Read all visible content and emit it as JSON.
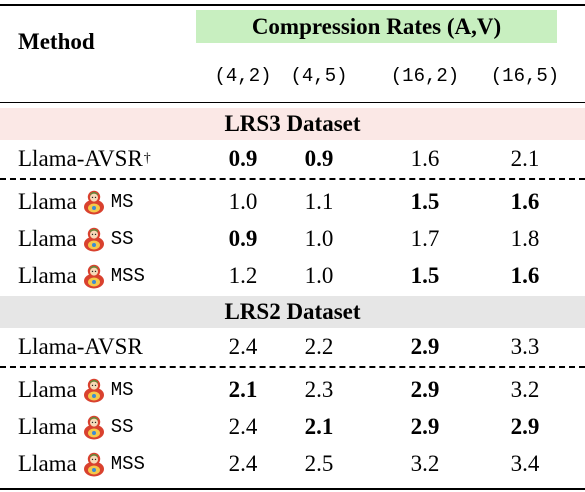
{
  "header": {
    "method": "Method",
    "group_title": "Compression Rates (A,V)",
    "group_bg": "#c8efc0",
    "rates": [
      "(4,2)",
      "(4,5)",
      "(16,2)",
      "(16,5)"
    ]
  },
  "sections": [
    {
      "title": "LRS3 Dataset",
      "bg": "#fbe8e6",
      "baseline": {
        "name": "Llama-AVSR",
        "mark": "†",
        "values": [
          "0.9",
          "0.9",
          "1.6",
          "2.1"
        ],
        "bold": [
          true,
          true,
          false,
          false
        ]
      },
      "rows": [
        {
          "name": "Llama",
          "icon": "matryoshka-doll-icon",
          "variant": "MS",
          "values": [
            "1.0",
            "1.1",
            "1.5",
            "1.6"
          ],
          "bold": [
            false,
            false,
            true,
            true
          ]
        },
        {
          "name": "Llama",
          "icon": "matryoshka-doll-icon",
          "variant": "SS",
          "values": [
            "0.9",
            "1.0",
            "1.7",
            "1.8"
          ],
          "bold": [
            true,
            false,
            false,
            false
          ]
        },
        {
          "name": "Llama",
          "icon": "matryoshka-doll-icon",
          "variant": "MSS",
          "values": [
            "1.2",
            "1.0",
            "1.5",
            "1.6"
          ],
          "bold": [
            false,
            false,
            true,
            true
          ]
        }
      ]
    },
    {
      "title": "LRS2 Dataset",
      "bg": "#e6e6e6",
      "baseline": {
        "name": "Llama-AVSR",
        "mark": "",
        "values": [
          "2.4",
          "2.2",
          "2.9",
          "3.3"
        ],
        "bold": [
          false,
          false,
          true,
          false
        ]
      },
      "rows": [
        {
          "name": "Llama",
          "icon": "matryoshka-doll-icon",
          "variant": "MS",
          "values": [
            "2.1",
            "2.3",
            "2.9",
            "3.2"
          ],
          "bold": [
            true,
            false,
            true,
            false
          ]
        },
        {
          "name": "Llama",
          "icon": "matryoshka-doll-icon",
          "variant": "SS",
          "values": [
            "2.4",
            "2.1",
            "2.9",
            "2.9"
          ],
          "bold": [
            false,
            true,
            true,
            true
          ]
        },
        {
          "name": "Llama",
          "icon": "matryoshka-doll-icon",
          "variant": "MSS",
          "values": [
            "2.4",
            "2.5",
            "3.2",
            "3.4"
          ],
          "bold": [
            false,
            false,
            false,
            false
          ]
        }
      ]
    }
  ]
}
